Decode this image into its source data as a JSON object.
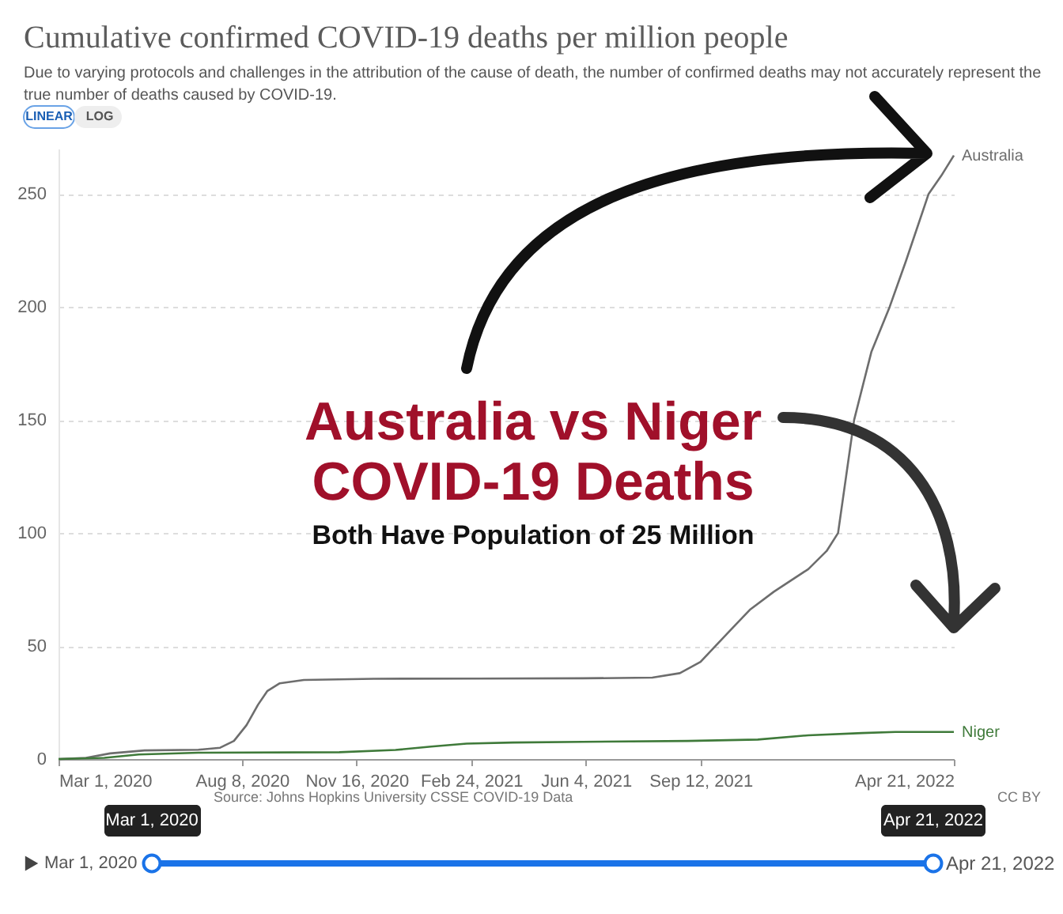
{
  "chart_data": {
    "type": "line",
    "title": "Cumulative confirmed COVID-19 deaths per million people",
    "subtitle": "Due to varying protocols and challenges in the attribution of the cause of death, the number of confirmed deaths may not accurately represent the\ntrue number of deaths caused by COVID-19.",
    "series": [
      {
        "name": "Australia",
        "color": "#6d6d6d",
        "x": [
          "2020-03-01",
          "2020-03-25",
          "2020-04-15",
          "2020-05-15",
          "2020-07-01",
          "2020-07-20",
          "2020-08-01",
          "2020-08-12",
          "2020-08-22",
          "2020-08-30",
          "2020-09-10",
          "2020-10-01",
          "2020-12-01",
          "2021-03-01",
          "2021-06-01",
          "2021-08-01",
          "2021-08-25",
          "2021-09-12",
          "2021-09-25",
          "2021-10-10",
          "2021-10-25",
          "2021-11-15",
          "2021-12-15",
          "2021-12-31",
          "2022-01-10",
          "2022-01-17",
          "2022-01-24",
          "2022-02-08",
          "2022-02-24",
          "2022-03-10",
          "2022-03-30",
          "2022-04-10",
          "2022-04-21"
        ],
        "values": [
          0,
          0.5,
          2.5,
          3.8,
          4.1,
          5,
          8,
          15,
          24,
          30,
          33.5,
          35,
          35.5,
          35.6,
          35.7,
          36,
          38,
          43,
          50,
          58,
          66,
          74,
          84,
          92,
          100,
          125,
          150,
          180,
          200,
          220,
          250,
          258,
          267
        ]
      },
      {
        "name": "Niger",
        "color": "#3f7a3a",
        "x": [
          "2020-03-01",
          "2020-04-10",
          "2020-05-10",
          "2020-07-01",
          "2020-11-01",
          "2020-12-20",
          "2021-01-20",
          "2021-02-20",
          "2021-04-01",
          "2021-06-01",
          "2021-09-01",
          "2021-11-01",
          "2021-12-15",
          "2022-01-31",
          "2022-03-01",
          "2022-04-21"
        ],
        "values": [
          0,
          0.5,
          2,
          2.8,
          3,
          4,
          5.5,
          6.8,
          7.3,
          7.6,
          8,
          8.6,
          10.5,
          11.5,
          12,
          12
        ]
      }
    ],
    "xlim": [
      "2020-03-01",
      "2022-04-21"
    ],
    "xticks": [
      {
        "value": "2020-03-01",
        "label": "Mar 1, 2020"
      },
      {
        "value": "2020-08-08",
        "label": "Aug 8, 2020"
      },
      {
        "value": "2020-11-16",
        "label": "Nov 16, 2020"
      },
      {
        "value": "2021-02-24",
        "label": "Feb 24, 2021"
      },
      {
        "value": "2021-06-04",
        "label": "Jun 4, 2021"
      },
      {
        "value": "2021-09-12",
        "label": "Sep 12, 2021"
      },
      {
        "value": "2022-04-21",
        "label": "Apr 21, 2022"
      }
    ],
    "ylim": [
      0,
      270
    ],
    "yticks": [
      0,
      50,
      100,
      150,
      200,
      250
    ],
    "grid": "y",
    "annotations": [
      "Australia vs Niger",
      "COVID-19 Deaths",
      "Both Have Population of 25 Million",
      "Source: Johns Hopkins University CSSE COVID-19 Data",
      "CC BY",
      "LINEAR",
      "LOG",
      "Mar 1, 2020",
      "Apr 21, 2022",
      "Mar 1, 2020",
      "Apr 21, 2022"
    ]
  }
}
